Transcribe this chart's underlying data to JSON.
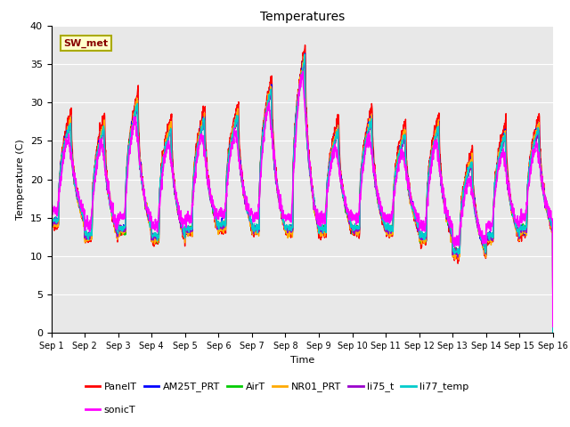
{
  "title": "Temperatures",
  "xlabel": "Time",
  "ylabel": "Temperature (C)",
  "ylim": [
    0,
    40
  ],
  "yticks": [
    0,
    5,
    10,
    15,
    20,
    25,
    30,
    35,
    40
  ],
  "series_names": [
    "PanelT",
    "AM25T_PRT",
    "AirT",
    "NR01_PRT",
    "li75_t",
    "li77_temp",
    "sonicT"
  ],
  "series_colors": [
    "#ff0000",
    "#0000ff",
    "#00cc00",
    "#ffaa00",
    "#9900cc",
    "#00cccc",
    "#ff00ff"
  ],
  "annotation_text": "SW_met",
  "annotation_bg": "#ffffcc",
  "annotation_border": "#aaaa00",
  "n_days": 15,
  "points_per_day": 144,
  "panel_peaks": [
    29,
    28.5,
    31.5,
    28.5,
    29.5,
    30,
    33.5,
    37.5,
    28,
    29.5,
    27.5,
    28.5,
    24,
    27.5,
    28.5
  ],
  "panel_mins": [
    14,
    12.2,
    13,
    12,
    13,
    13.5,
    13,
    13,
    13,
    13,
    13,
    12,
    10,
    12,
    13
  ],
  "bg_color": "#e8e8e8",
  "grid_color": "#ffffff",
  "figsize": [
    6.4,
    4.8
  ],
  "dpi": 100
}
